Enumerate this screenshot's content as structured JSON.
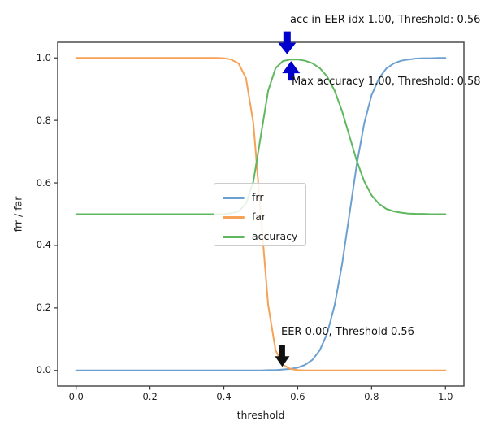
{
  "figure": {
    "background": "#ffffff"
  },
  "chart_data": {
    "type": "line",
    "title": "",
    "xlabel": "threshold",
    "ylabel": "frr / far",
    "xlim": [
      -0.05,
      1.05
    ],
    "ylim": [
      -0.05,
      1.05
    ],
    "xticks": [
      0.0,
      0.2,
      0.4,
      0.6,
      0.8,
      1.0
    ],
    "yticks": [
      0.0,
      0.2,
      0.4,
      0.6,
      0.8,
      1.0
    ],
    "grid": false,
    "legend_position": "center",
    "spine_color": "#4d4d4d",
    "tick_color": "#333333",
    "x": [
      0.0,
      0.02,
      0.04,
      0.06,
      0.08,
      0.1,
      0.12,
      0.14,
      0.16,
      0.18,
      0.2,
      0.22,
      0.24,
      0.26,
      0.28,
      0.3,
      0.32,
      0.34,
      0.36,
      0.38,
      0.4,
      0.42,
      0.44,
      0.46,
      0.48,
      0.5,
      0.52,
      0.54,
      0.56,
      0.58,
      0.6,
      0.62,
      0.64,
      0.66,
      0.68,
      0.7,
      0.72,
      0.74,
      0.76,
      0.78,
      0.8,
      0.82,
      0.84,
      0.86,
      0.88,
      0.9,
      0.92,
      0.94,
      0.96,
      0.98,
      1.0
    ],
    "series": [
      {
        "name": "frr",
        "color": "#6ba0d0",
        "values": [
          0,
          0,
          0,
          0,
          0,
          0,
          0,
          0,
          0,
          0,
          0,
          0,
          0,
          0,
          0,
          0,
          0,
          0,
          0,
          0,
          0,
          0,
          0,
          0,
          0,
          0,
          0.001,
          0.001,
          0.003,
          0.005,
          0.009,
          0.018,
          0.034,
          0.065,
          0.119,
          0.209,
          0.339,
          0.5,
          0.661,
          0.791,
          0.881,
          0.935,
          0.966,
          0.982,
          0.991,
          0.995,
          0.998,
          0.999,
          0.999,
          1.0,
          1.0
        ]
      },
      {
        "name": "far",
        "color": "#f7a157",
        "values": [
          1,
          1,
          1,
          1,
          1,
          1,
          1,
          1,
          1,
          1,
          1,
          1,
          1,
          1,
          1,
          1,
          1,
          1,
          1,
          1,
          0.999,
          0.995,
          0.982,
          0.935,
          0.791,
          0.5,
          0.209,
          0.065,
          0.018,
          0.005,
          0.001,
          0,
          0,
          0,
          0,
          0,
          0,
          0,
          0,
          0,
          0,
          0,
          0,
          0,
          0,
          0,
          0,
          0,
          0,
          0,
          0
        ]
      },
      {
        "name": "accuracy",
        "color": "#5fb75f",
        "values": [
          0.5,
          0.5,
          0.5,
          0.5,
          0.5,
          0.5,
          0.5,
          0.5,
          0.5,
          0.5,
          0.5,
          0.5,
          0.5,
          0.5,
          0.5,
          0.5,
          0.5,
          0.5,
          0.5,
          0.5,
          0.5,
          0.503,
          0.509,
          0.533,
          0.605,
          0.75,
          0.895,
          0.967,
          0.99,
          0.995,
          0.995,
          0.991,
          0.983,
          0.967,
          0.94,
          0.895,
          0.83,
          0.75,
          0.67,
          0.605,
          0.56,
          0.533,
          0.517,
          0.509,
          0.505,
          0.502,
          0.501,
          0.501,
          0.5,
          0.5,
          0.5
        ]
      }
    ],
    "annotations": [
      {
        "text": "acc in EER idx 1.00, Threshold: 0.56",
        "threshold": 0.56,
        "value": 1.0,
        "arrow": "fancy-down",
        "arrow_color": "#0000cd",
        "tip_x": 0.571,
        "tip_y": 1.012
      },
      {
        "text": "Max accuracy 1.00, Threshold: 0.58",
        "threshold": 0.58,
        "value": 1.0,
        "arrow": "fancy-up",
        "arrow_color": "#0000cd",
        "tip_x": 0.582,
        "tip_y": 0.99
      },
      {
        "text": "EER 0.00, Threshold 0.56",
        "threshold": 0.56,
        "value": 0.0,
        "arrow": "fancy-down",
        "arrow_color": "#111111",
        "tip_x": 0.558,
        "tip_y": 0.012
      }
    ]
  }
}
